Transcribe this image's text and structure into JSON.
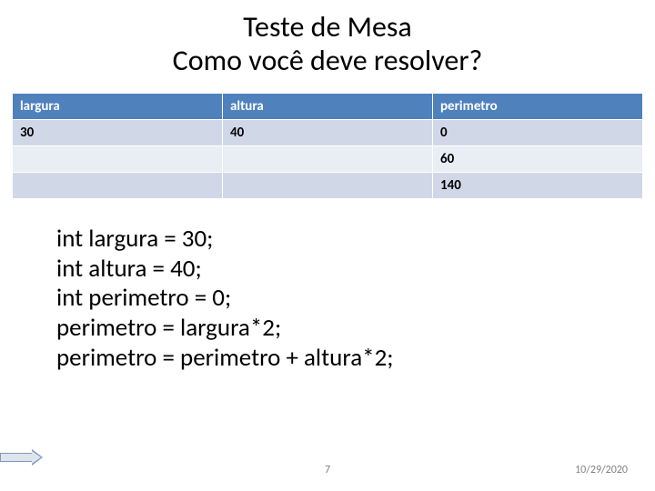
{
  "title": {
    "line1": "Teste de Mesa",
    "line2": "Como você deve resolver?"
  },
  "table": {
    "columns": [
      "largura",
      "altura",
      "perimetro"
    ],
    "rows": [
      {
        "cells": [
          "30",
          "40",
          "0"
        ],
        "faded": [
          false,
          false,
          true
        ],
        "alt": false
      },
      {
        "cells": [
          "",
          "",
          "60"
        ],
        "faded": [
          false,
          false,
          true
        ],
        "alt": true
      },
      {
        "cells": [
          "",
          "",
          "140"
        ],
        "faded": [
          false,
          false,
          false
        ],
        "alt": false
      }
    ],
    "header_bg": "#4f81bd",
    "row_bg": "#d0d8e8",
    "row_alt_bg": "#e9edf4",
    "faded_color": "#a8b4c8"
  },
  "code": {
    "lines": [
      "int largura = 30;",
      "int altura = 40;",
      "int perimetro = 0;",
      "perimetro = largura*2;",
      "perimetro  = perimetro + altura*2;"
    ]
  },
  "footer": {
    "slide_number": "7",
    "date": "10/29/2020"
  }
}
